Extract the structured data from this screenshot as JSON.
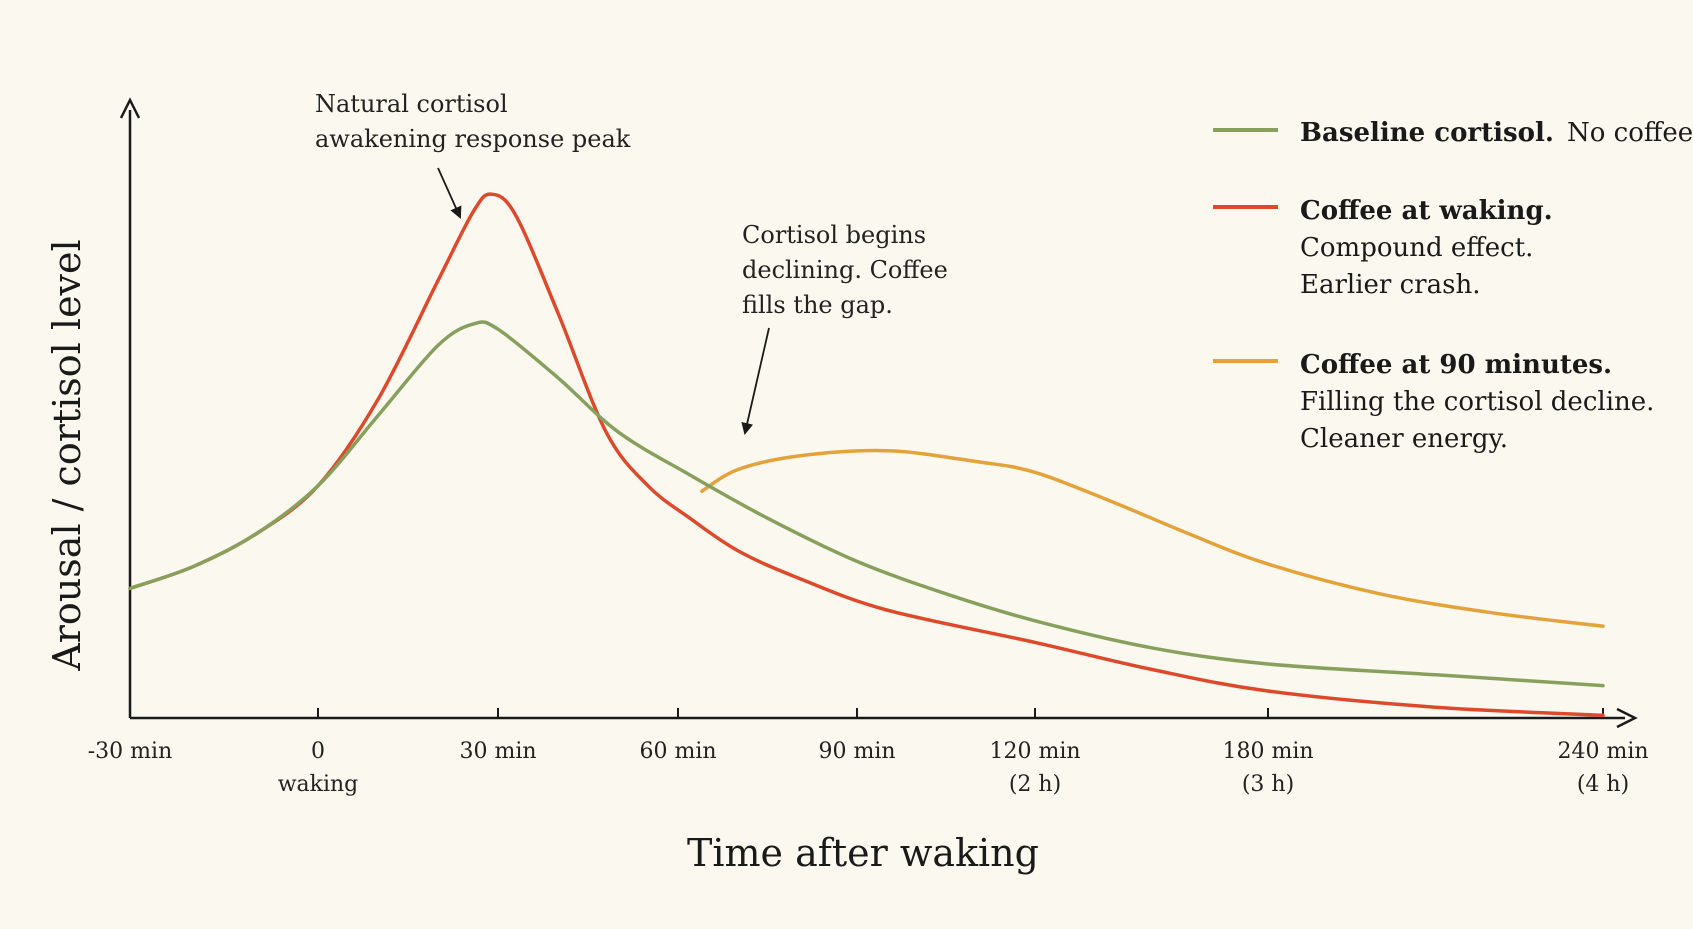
{
  "chart_data": {
    "type": "line",
    "xlabel": "Time after waking",
    "ylabel": "Arousal / cortisol level",
    "xlim": [
      -30,
      240
    ],
    "ylim": [
      0,
      10
    ],
    "x_ticks": [
      {
        "value": -30,
        "label": "-30 min",
        "sublabel": ""
      },
      {
        "value": 0,
        "label": "0",
        "sublabel": "waking"
      },
      {
        "value": 30,
        "label": "30 min",
        "sublabel": ""
      },
      {
        "value": 60,
        "label": "60 min",
        "sublabel": ""
      },
      {
        "value": 90,
        "label": "90 min",
        "sublabel": ""
      },
      {
        "value": 120,
        "label": "120 min",
        "sublabel": "(2 h)"
      },
      {
        "value": 180,
        "label": "180 min",
        "sublabel": "(3 h)"
      },
      {
        "value": 240,
        "label": "240 min",
        "sublabel": "(4 h)"
      }
    ],
    "series": [
      {
        "key": "baseline",
        "color": "#88a05e",
        "x": [
          -30,
          -20,
          -10,
          0,
          10,
          20,
          26,
          30,
          40,
          50,
          62,
          75,
          90,
          105,
          120,
          150,
          180,
          210,
          240
        ],
        "y": [
          2.4,
          2.8,
          3.4,
          4.3,
          5.6,
          6.9,
          7.3,
          7.2,
          6.3,
          5.3,
          4.5,
          3.7,
          2.9,
          2.3,
          1.8,
          1.3,
          1.0,
          0.8,
          0.6
        ]
      },
      {
        "key": "coffee_waking",
        "color": "#dd4a2b",
        "x": [
          -30,
          -20,
          -10,
          0,
          10,
          20,
          26,
          29,
          33,
          40,
          48,
          55,
          62,
          70,
          80,
          95,
          120,
          150,
          180,
          210,
          240
        ],
        "y": [
          2.4,
          2.8,
          3.4,
          4.3,
          5.9,
          8.1,
          9.4,
          9.7,
          9.3,
          7.5,
          5.3,
          4.3,
          3.7,
          3.1,
          2.6,
          2.0,
          1.4,
          0.9,
          0.5,
          0.2,
          0.05
        ]
      },
      {
        "key": "coffee_90",
        "color": "#e3a23a",
        "x": [
          64,
          70,
          80,
          95,
          110,
          120,
          140,
          160,
          180,
          200,
          220,
          240
        ],
        "y": [
          4.2,
          4.6,
          4.85,
          4.95,
          4.75,
          4.55,
          4.0,
          3.4,
          2.85,
          2.3,
          1.95,
          1.7
        ]
      }
    ],
    "legend": {
      "placement": "top-right",
      "entries": [
        {
          "series": "baseline",
          "bold": "Baseline cortisol.",
          "rest": "No coffee.",
          "lines": []
        },
        {
          "series": "coffee_waking",
          "bold": "Coffee at waking.",
          "rest": "",
          "lines": [
            "Compound effect.",
            "Earlier crash."
          ]
        },
        {
          "series": "coffee_90",
          "bold": "Coffee at 90 minutes.",
          "rest": "",
          "lines": [
            "Filling the cortisol decline.",
            "Cleaner energy."
          ]
        }
      ]
    },
    "annotations": [
      {
        "key": "peak",
        "lines": [
          "Natural cortisol",
          "awakening response peak"
        ],
        "points_to": {
          "x": 29,
          "y": 9.7
        }
      },
      {
        "key": "decline",
        "lines": [
          "Cortisol begins",
          "declining. Coffee",
          "fills the gap."
        ],
        "points_to": {
          "x": 66,
          "y": 4.3
        }
      }
    ],
    "grid": false
  }
}
